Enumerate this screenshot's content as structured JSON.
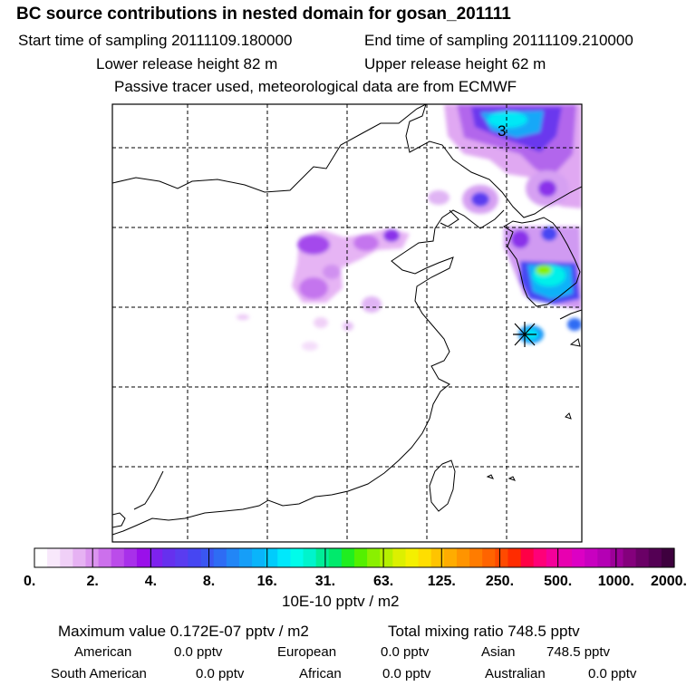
{
  "header": {
    "title": "BC  source contributions in nested domain for gosan_201111",
    "start_label": "Start time of sampling 20111109.180000",
    "end_label": "End time of sampling 20111109.210000",
    "lower_release": "Lower release height   82 m",
    "upper_release": "Upper release height   62 m",
    "note": "Passive tracer used, meteorological data are from ECMWF"
  },
  "map": {
    "grid_label": "3",
    "receptor": "gosan"
  },
  "colorbar": {
    "ticks": [
      "0.",
      "2.",
      "4.",
      "8.",
      "16.",
      "31.",
      "63.",
      "125.",
      "250.",
      "500.",
      "1000.",
      "2000."
    ],
    "colors": [
      "#ffffff",
      "#f8e8fb",
      "#f0d0f7",
      "#e6b2f3",
      "#db94ef",
      "#cc70ec",
      "#bb4cea",
      "#a830ea",
      "#9a10ea",
      "#7e22ee",
      "#6630ee",
      "#5a3cf0",
      "#4646f2",
      "#3a56f2",
      "#2e6cf4",
      "#2286f6",
      "#169ef8",
      "#0ab4fa",
      "#00ccfc",
      "#00e8fc",
      "#00fcea",
      "#00f4cc",
      "#00ee98",
      "#00ea6c",
      "#20ee20",
      "#54f000",
      "#8af000",
      "#b6f000",
      "#dcf000",
      "#f4f000",
      "#ffde00",
      "#ffc400",
      "#ffac00",
      "#ff9400",
      "#ff7c00",
      "#ff6400",
      "#ff4a00",
      "#ff2c00",
      "#ff0046",
      "#ff0078",
      "#f4009a",
      "#e800b0",
      "#dc00c4",
      "#c800c0",
      "#b400b4",
      "#9c0098",
      "#84007c",
      "#6a0066",
      "#540054",
      "#3e003e"
    ],
    "unit": "10E-10 pptv / m2"
  },
  "summary": {
    "max_value": "Maximum value  0.172E-07 pptv / m2",
    "total_mixing": "Total mixing ratio       748.5 pptv",
    "regions": [
      {
        "name": "American",
        "value": "0.0 pptv"
      },
      {
        "name": "European",
        "value": "0.0 pptv"
      },
      {
        "name": "Asian",
        "value": "748.5 pptv"
      },
      {
        "name": "South American",
        "value": "0.0 pptv"
      },
      {
        "name": "African",
        "value": "0.0 pptv"
      },
      {
        "name": "Australian",
        "value": "0.0 pptv"
      }
    ]
  }
}
